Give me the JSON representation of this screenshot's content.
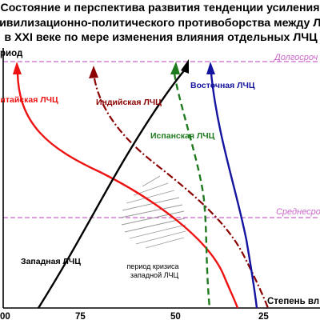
{
  "chart_data": {
    "type": "line",
    "title_lines": [
      "Состояние и перспектива развития тенденции усиления",
      "цивилизационно-политического противоборства между ЛЧЦ",
      "в XXI веке по мере изменения влияния отдельных ЛЧЦ"
    ],
    "ylabel": "риод",
    "xlabel": "Степень вл",
    "x_ticks": [
      "00",
      "75",
      "50",
      "25"
    ],
    "reference_lines": [
      {
        "label": "Долгосроч",
        "color": "#cc66cc"
      },
      {
        "label": "Среднесро",
        "color": "#cc66cc"
      }
    ],
    "series": [
      {
        "name": "Китайская ЛЧЦ",
        "color": "#ee1111",
        "style": "solid"
      },
      {
        "name": "Индийская ЛЧЦ",
        "color": "#8b0000",
        "style": "dashdot"
      },
      {
        "name": "Испанская ЛЧЦ",
        "color": "#1f7a1f",
        "style": "dashed"
      },
      {
        "name": "Восточная ЛЧЦ",
        "color": "#1414a0",
        "style": "solid"
      },
      {
        "name": "Западная ЛЧЦ",
        "color": "#000000",
        "style": "solid"
      }
    ],
    "crisis_label_lines": [
      "период кризиса",
      "западной ЛЧЦ"
    ]
  }
}
